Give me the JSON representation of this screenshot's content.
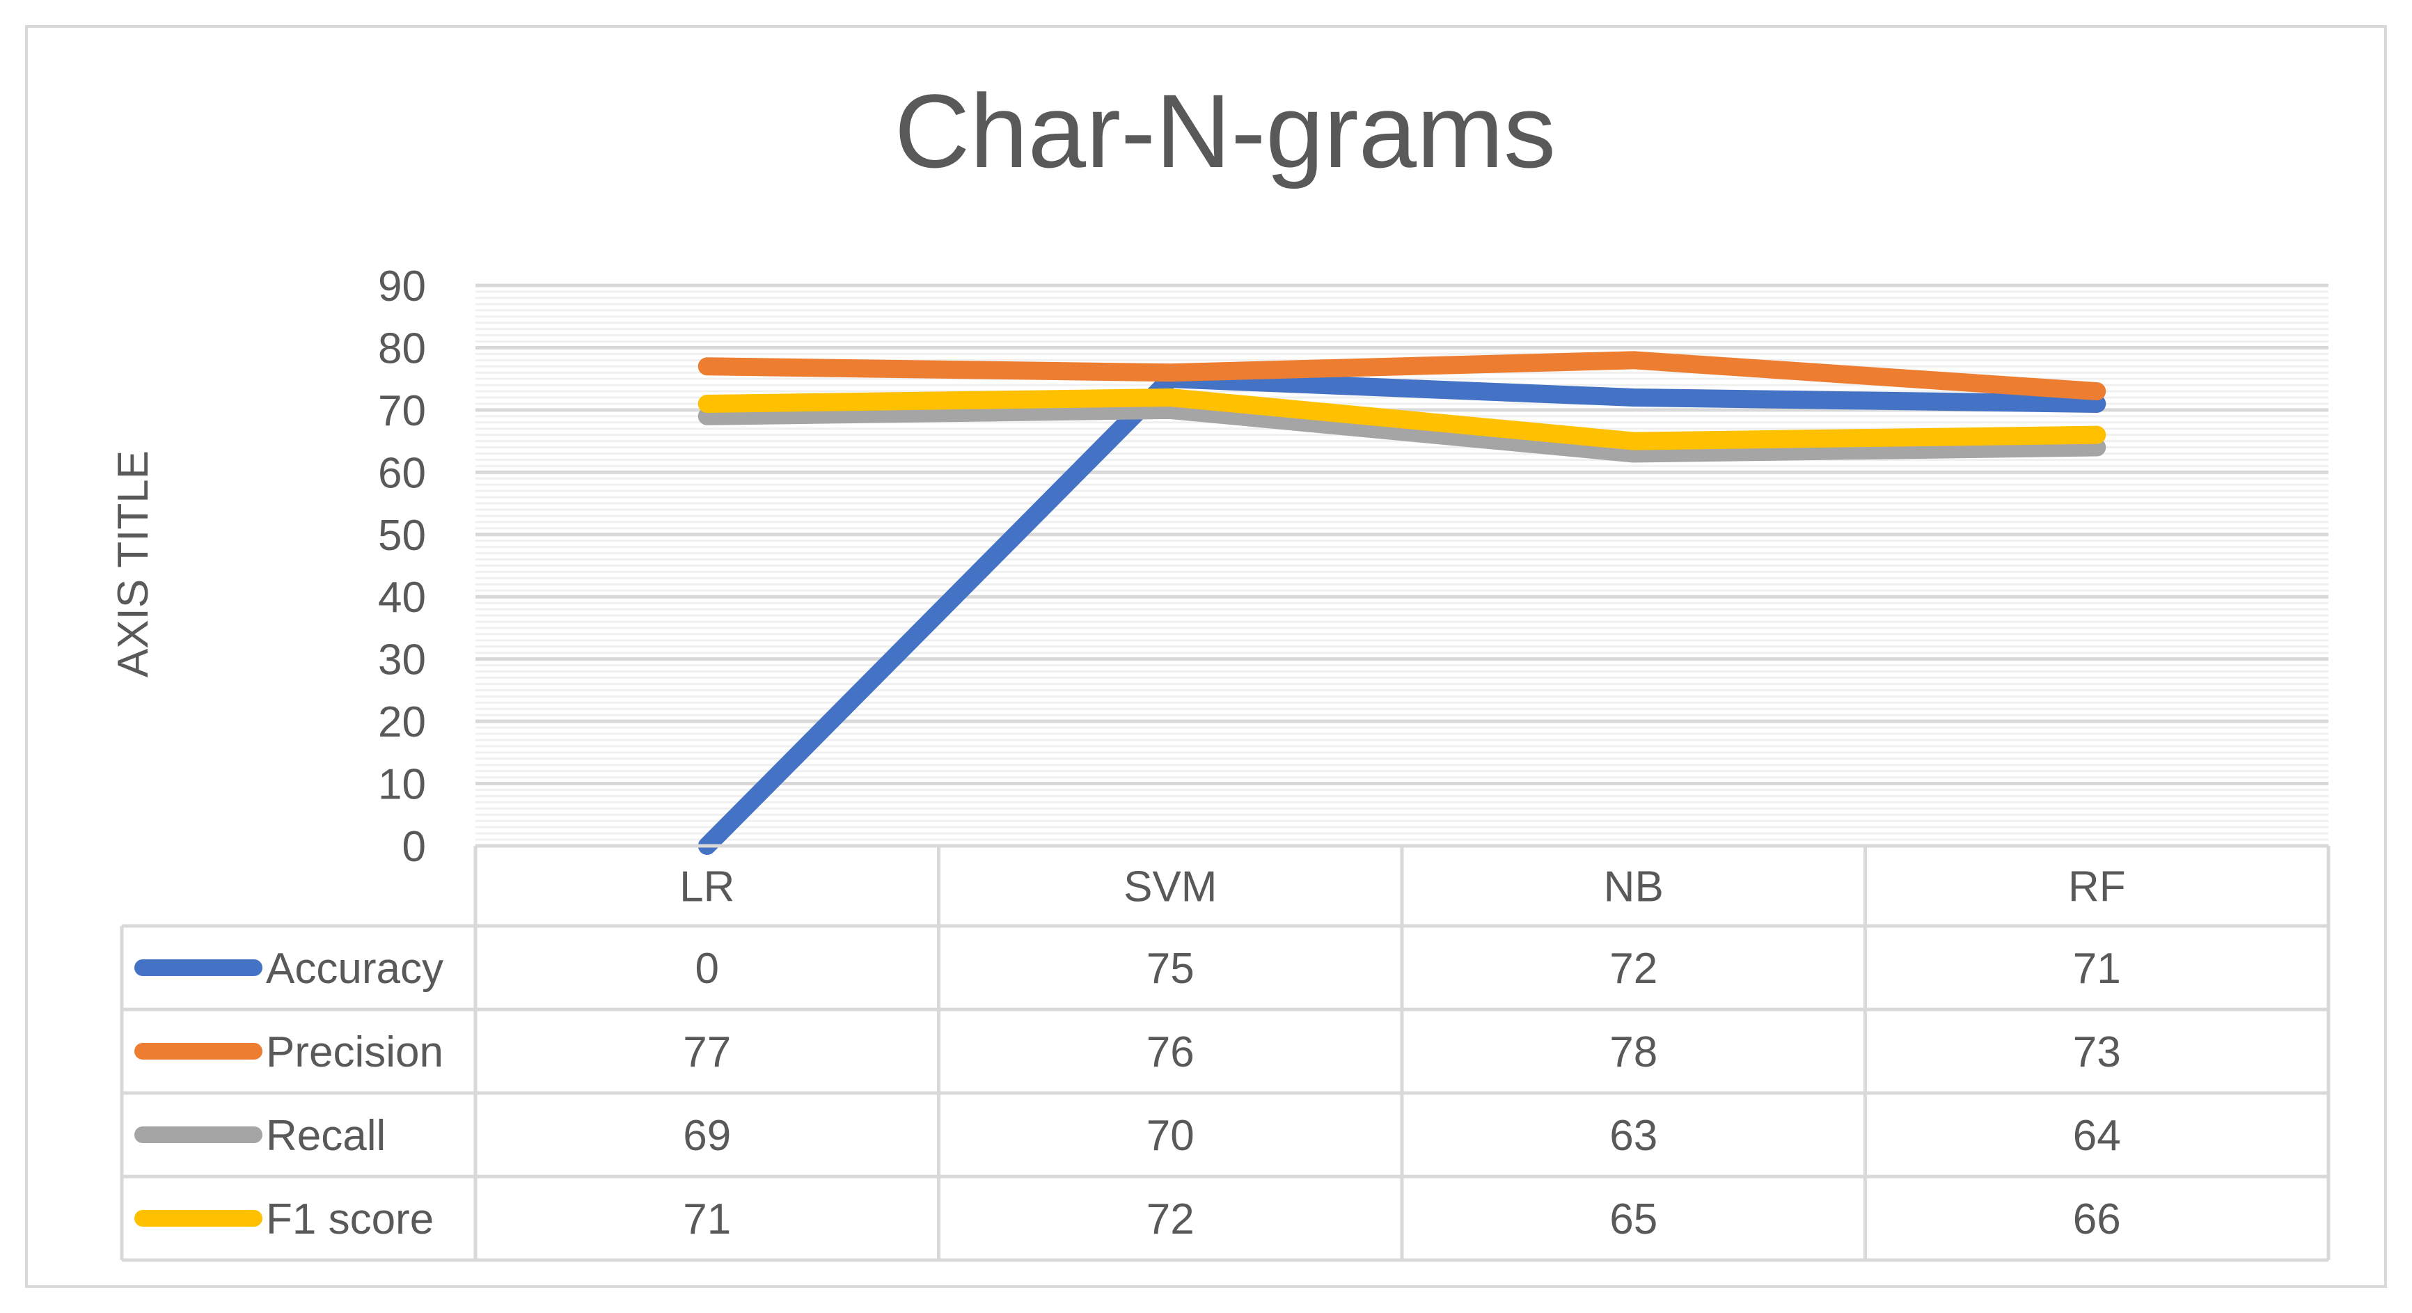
{
  "chart_data": {
    "type": "line",
    "title": "Char-N-grams",
    "xlabel": "",
    "ylabel": "AXIS TITLE",
    "categories": [
      "LR",
      "SVM",
      "NB",
      "RF"
    ],
    "ylim": [
      0,
      90
    ],
    "yticks": [
      0,
      10,
      20,
      30,
      40,
      50,
      60,
      70,
      80,
      90
    ],
    "grid": true,
    "legend_placement": "data-table",
    "series": [
      {
        "name": "Accuracy",
        "values": [
          0,
          75,
          72,
          71
        ],
        "color": "#4472C4"
      },
      {
        "name": "Precision",
        "values": [
          77,
          76,
          78,
          73
        ],
        "color": "#ED7D31"
      },
      {
        "name": "Recall",
        "values": [
          69,
          70,
          63,
          64
        ],
        "color": "#A5A5A5"
      },
      {
        "name": "F1 score",
        "values": [
          71,
          72,
          65,
          66
        ],
        "color": "#FFC000"
      }
    ]
  }
}
